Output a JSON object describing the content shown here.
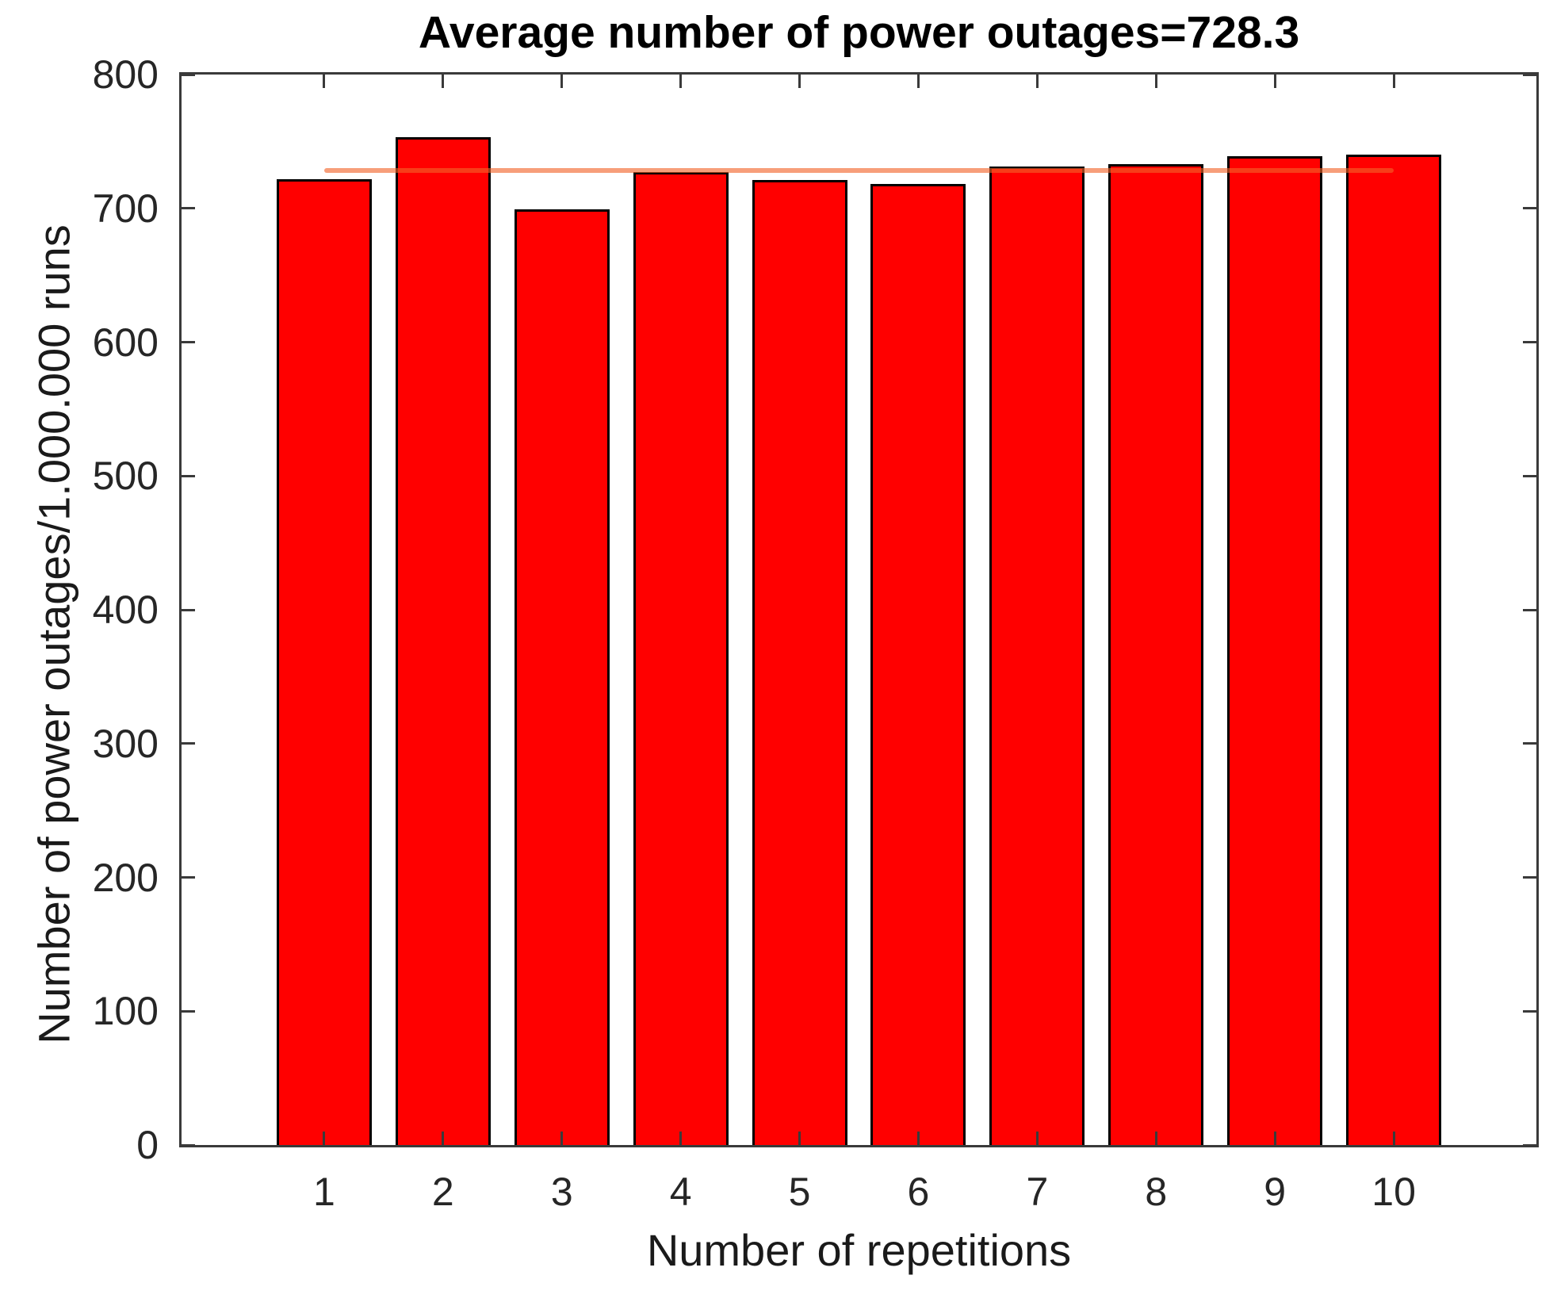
{
  "chart_data": {
    "type": "bar",
    "title": "Average number of power outages=728.3",
    "xlabel": "Number of repetitions",
    "ylabel": "Number of power outages/1.000.000 runs",
    "categories": [
      "1",
      "2",
      "3",
      "4",
      "5",
      "6",
      "7",
      "8",
      "9",
      "10"
    ],
    "values": [
      722,
      753,
      699,
      727,
      721,
      718,
      731,
      733,
      739,
      740
    ],
    "average": 728.3,
    "ylim": [
      0,
      800
    ],
    "ytick_step": 100,
    "ytick_labels": [
      "0",
      "100",
      "200",
      "300",
      "400",
      "500",
      "600",
      "700",
      "800"
    ],
    "xlim": [
      -0.2,
      11.2
    ],
    "bar_width_units": 0.8,
    "bar_color": "#ff0000",
    "bar_edge_color": "#000000",
    "mean_line": {
      "value": 728.3,
      "from_category": "1",
      "to_category": "10",
      "color": "rgba(242,99,41,0.62)"
    },
    "grid": false,
    "legend": null,
    "axis_color": "#3a3a3a",
    "tick_label_color": "#262626"
  }
}
